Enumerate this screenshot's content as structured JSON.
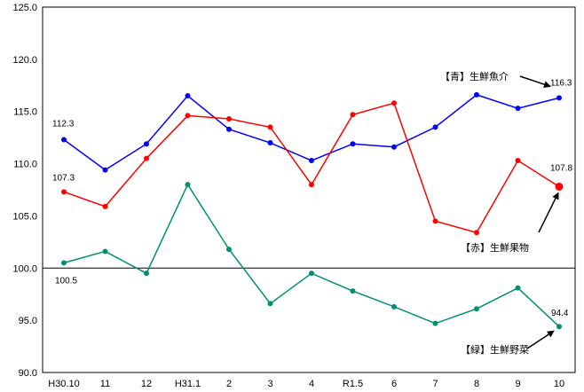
{
  "chart_data": {
    "type": "line",
    "categories": [
      "H30.10",
      "11",
      "12",
      "H31.1",
      "2",
      "3",
      "4",
      "R1.5",
      "6",
      "7",
      "8",
      "9",
      "10"
    ],
    "ylim": [
      90.0,
      125.0
    ],
    "yticks": [
      "90.0",
      "95.0",
      "100.0",
      "105.0",
      "110.0",
      "115.0",
      "120.0",
      "125.0"
    ],
    "baseline": 100.0,
    "grid": false,
    "series": [
      {
        "key": "blue",
        "name": "【青】生鮮魚介",
        "color": "#0000ff",
        "values": [
          112.3,
          109.4,
          111.9,
          116.5,
          113.3,
          112.0,
          110.3,
          111.9,
          111.6,
          113.5,
          116.6,
          115.3,
          116.3
        ],
        "start_label": "112.3",
        "end_label": "116.3"
      },
      {
        "key": "red",
        "name": "【赤】生鮮果物",
        "color": "#ff0000",
        "values": [
          107.3,
          105.9,
          110.5,
          114.6,
          114.3,
          113.5,
          108.0,
          114.7,
          115.8,
          104.5,
          103.4,
          110.3,
          107.8
        ],
        "start_label": "107.3",
        "end_label": "107.8"
      },
      {
        "key": "green",
        "name": "【緑】生鮮野菜",
        "color": "#009070",
        "values": [
          100.5,
          101.6,
          99.5,
          108.0,
          101.8,
          96.6,
          99.5,
          97.8,
          96.3,
          94.7,
          96.1,
          98.1,
          94.4
        ],
        "start_label": "100.5",
        "end_label": "94.4"
      }
    ]
  }
}
